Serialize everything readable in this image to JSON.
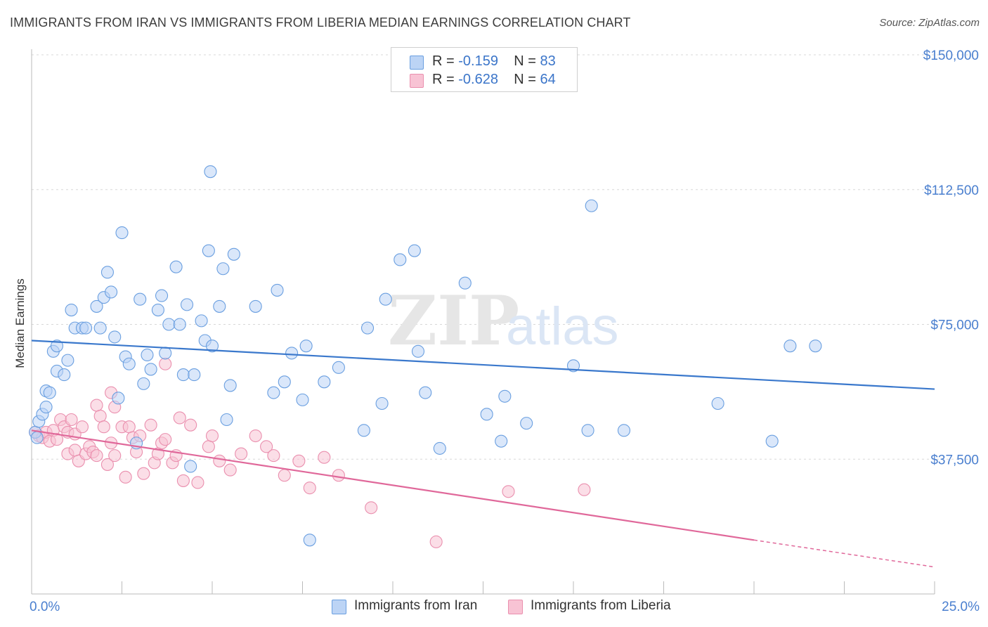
{
  "title": "IMMIGRANTS FROM IRAN VS IMMIGRANTS FROM LIBERIA MEDIAN EARNINGS CORRELATION CHART",
  "source_label": "Source: ",
  "source_site": "ZipAtlas.com",
  "watermark": {
    "zip": "ZIP",
    "atlas": "atlas"
  },
  "colors": {
    "iran": "#6a9fe0",
    "iran_fill": "#bcd4f5",
    "iran_line": "#3a78cc",
    "liberia": "#ea8fae",
    "liberia_fill": "#f8c3d4",
    "liberia_line": "#e0689a",
    "tick": "#4a7fcf",
    "grid": "#d8d8d8"
  },
  "legend": {
    "rows": [
      {
        "r_label": "R = ",
        "r_value": "-0.159",
        "n_label": "N = ",
        "n_value": "83"
      },
      {
        "r_label": "R = ",
        "r_value": "-0.628",
        "n_label": "N = ",
        "n_value": "64"
      }
    ]
  },
  "bottom_legend": {
    "iran": "Immigrants from Iran",
    "liberia": "Immigrants from Liberia"
  },
  "chart_data": {
    "type": "scatter",
    "ylabel": "Median Earnings",
    "xlim": [
      0,
      25
    ],
    "ylim": [
      0,
      150000
    ],
    "x_tick_labels": [
      "0.0%",
      "25.0%"
    ],
    "y_ticks": [
      37500,
      75000,
      112500,
      150000
    ],
    "y_tick_labels": [
      "$37,500",
      "$75,000",
      "$112,500",
      "$150,000"
    ],
    "grid": "horizontal dashed",
    "legend_placement": "top-center",
    "series": [
      {
        "name": "Immigrants from Iran",
        "r": -0.159,
        "n": 83,
        "trend": {
          "x": [
            0,
            25
          ],
          "y": [
            70500,
            57000
          ],
          "dashed_from": null
        },
        "points": [
          [
            0.1,
            45000
          ],
          [
            0.2,
            48000
          ],
          [
            0.3,
            50000
          ],
          [
            0.4,
            52000
          ],
          [
            0.4,
            56500
          ],
          [
            0.5,
            56000
          ],
          [
            0.6,
            67500
          ],
          [
            0.7,
            69000
          ],
          [
            0.7,
            62000
          ],
          [
            0.9,
            61000
          ],
          [
            1.0,
            65000
          ],
          [
            1.1,
            79000
          ],
          [
            1.2,
            74000
          ],
          [
            1.4,
            74000
          ],
          [
            1.5,
            74000
          ],
          [
            1.8,
            80000
          ],
          [
            1.9,
            74000
          ],
          [
            2.0,
            82500
          ],
          [
            2.1,
            89500
          ],
          [
            2.2,
            84000
          ],
          [
            2.3,
            71500
          ],
          [
            2.4,
            54500
          ],
          [
            2.5,
            100500
          ],
          [
            2.6,
            66000
          ],
          [
            2.7,
            64000
          ],
          [
            2.9,
            42000
          ],
          [
            3.0,
            82000
          ],
          [
            3.1,
            58500
          ],
          [
            3.2,
            66500
          ],
          [
            3.3,
            62500
          ],
          [
            3.5,
            79000
          ],
          [
            3.6,
            83000
          ],
          [
            3.7,
            67000
          ],
          [
            3.8,
            75000
          ],
          [
            4.0,
            91000
          ],
          [
            4.1,
            75000
          ],
          [
            4.2,
            61000
          ],
          [
            4.3,
            80500
          ],
          [
            4.4,
            35500
          ],
          [
            4.5,
            61000
          ],
          [
            4.7,
            76000
          ],
          [
            4.8,
            70500
          ],
          [
            4.9,
            95500
          ],
          [
            4.95,
            117500
          ],
          [
            5.0,
            69000
          ],
          [
            5.2,
            80000
          ],
          [
            5.3,
            90500
          ],
          [
            5.4,
            48500
          ],
          [
            5.5,
            58000
          ],
          [
            5.6,
            94500
          ],
          [
            6.2,
            80000
          ],
          [
            6.7,
            56000
          ],
          [
            6.8,
            84500
          ],
          [
            7.0,
            59000
          ],
          [
            7.2,
            67000
          ],
          [
            7.5,
            54000
          ],
          [
            7.6,
            69000
          ],
          [
            8.1,
            59000
          ],
          [
            8.5,
            63000
          ],
          [
            9.2,
            45500
          ],
          [
            9.3,
            74000
          ],
          [
            9.7,
            53000
          ],
          [
            9.8,
            82000
          ],
          [
            10.2,
            93000
          ],
          [
            10.6,
            95500
          ],
          [
            10.7,
            67500
          ],
          [
            10.9,
            56000
          ],
          [
            11.3,
            40500
          ],
          [
            12.0,
            86500
          ],
          [
            12.6,
            50000
          ],
          [
            13.0,
            42500
          ],
          [
            13.1,
            55000
          ],
          [
            13.7,
            47500
          ],
          [
            15.0,
            63500
          ],
          [
            15.4,
            45500
          ],
          [
            15.5,
            108000
          ],
          [
            16.4,
            45500
          ],
          [
            19.0,
            53000
          ],
          [
            20.5,
            42500
          ],
          [
            21.0,
            69000
          ],
          [
            21.7,
            69000
          ],
          [
            7.7,
            15000
          ],
          [
            0.15,
            43500
          ]
        ]
      },
      {
        "name": "Immigrants from Liberia",
        "r": -0.628,
        "n": 64,
        "trend": {
          "x": [
            0,
            20,
            25
          ],
          "y": [
            45500,
            15000,
            7500
          ],
          "dashed_from": 20
        },
        "points": [
          [
            0.1,
            45000
          ],
          [
            0.2,
            44000
          ],
          [
            0.3,
            43500
          ],
          [
            0.4,
            45000
          ],
          [
            0.5,
            42500
          ],
          [
            0.6,
            45500
          ],
          [
            0.7,
            43000
          ],
          [
            0.8,
            48500
          ],
          [
            0.9,
            46500
          ],
          [
            1.0,
            39000
          ],
          [
            1.0,
            45000
          ],
          [
            1.1,
            48500
          ],
          [
            1.2,
            44500
          ],
          [
            1.2,
            40000
          ],
          [
            1.3,
            37000
          ],
          [
            1.4,
            46500
          ],
          [
            1.5,
            39000
          ],
          [
            1.6,
            41000
          ],
          [
            1.7,
            39500
          ],
          [
            1.8,
            38500
          ],
          [
            1.8,
            52500
          ],
          [
            1.9,
            49500
          ],
          [
            2.0,
            46500
          ],
          [
            2.1,
            36000
          ],
          [
            2.2,
            42000
          ],
          [
            2.2,
            56000
          ],
          [
            2.3,
            38500
          ],
          [
            2.3,
            52000
          ],
          [
            2.5,
            46500
          ],
          [
            2.6,
            32500
          ],
          [
            2.7,
            46500
          ],
          [
            2.8,
            43500
          ],
          [
            2.9,
            39500
          ],
          [
            3.0,
            44000
          ],
          [
            3.1,
            33500
          ],
          [
            3.3,
            47000
          ],
          [
            3.4,
            36500
          ],
          [
            3.5,
            39000
          ],
          [
            3.6,
            42000
          ],
          [
            3.7,
            43000
          ],
          [
            3.9,
            36500
          ],
          [
            4.0,
            38500
          ],
          [
            4.1,
            49000
          ],
          [
            4.2,
            31500
          ],
          [
            4.4,
            47000
          ],
          [
            4.6,
            31000
          ],
          [
            4.9,
            41000
          ],
          [
            5.0,
            44000
          ],
          [
            5.2,
            37000
          ],
          [
            5.5,
            34500
          ],
          [
            5.8,
            39000
          ],
          [
            6.2,
            44000
          ],
          [
            6.5,
            41000
          ],
          [
            6.7,
            38500
          ],
          [
            7.0,
            33000
          ],
          [
            7.4,
            37000
          ],
          [
            7.7,
            29500
          ],
          [
            8.1,
            38000
          ],
          [
            8.5,
            33000
          ],
          [
            9.4,
            24000
          ],
          [
            11.2,
            14500
          ],
          [
            13.2,
            28500
          ],
          [
            15.3,
            29000
          ],
          [
            3.7,
            64000
          ]
        ]
      }
    ]
  }
}
